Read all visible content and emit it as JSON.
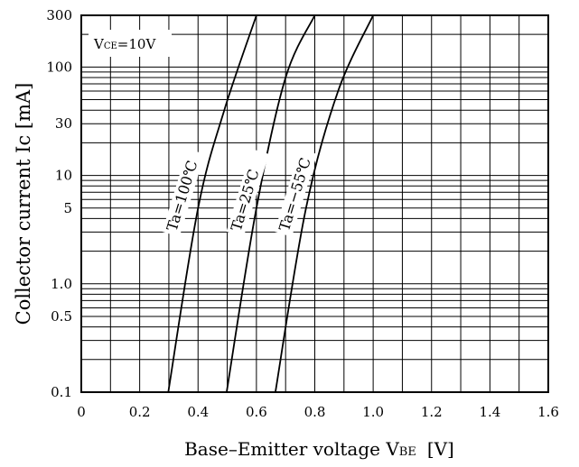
{
  "chart_data": {
    "type": "line",
    "title": "",
    "xlabel": "Base–Emitter voltage V",
    "xlabel_sub": "BE",
    "xlabel_unit": "[V]",
    "ylabel": "Collector current Ic  [mA]",
    "condition": {
      "main": "V",
      "sub": "CE",
      "value": "=10V"
    },
    "xlim": [
      0,
      1.6
    ],
    "ylim": [
      0.1,
      300
    ],
    "y_scale": "log",
    "grid": true,
    "x_ticks": [
      0,
      0.2,
      0.4,
      0.6,
      0.8,
      1.0,
      1.2,
      1.4,
      1.6
    ],
    "x_tick_labels": [
      "0",
      "0.2",
      "0.4",
      "0.6",
      "0.8",
      "1.0",
      "1.2",
      "1.4",
      "1.6"
    ],
    "x_grid_step": 0.1,
    "y_tick_labels": [
      {
        "value": 300,
        "label": "300"
      },
      {
        "value": 100,
        "label": "100"
      },
      {
        "value": 30,
        "label": "30"
      },
      {
        "value": 10,
        "label": "10"
      },
      {
        "value": 5,
        "label": "5"
      },
      {
        "value": 1.0,
        "label": "1.0"
      },
      {
        "value": 0.5,
        "label": "0.5"
      },
      {
        "value": 0.1,
        "label": "0.1"
      }
    ],
    "series": [
      {
        "name": "Ta=100℃",
        "x": [
          0.298,
          0.4,
          0.49,
          0.6
        ],
        "y": [
          0.1,
          5,
          40,
          300
        ]
      },
      {
        "name": "Ta=25℃",
        "x": [
          0.498,
          0.6,
          0.7,
          0.8
        ],
        "y": [
          0.1,
          5,
          80,
          300
        ]
      },
      {
        "name": "Ta=−55℃",
        "x": [
          0.665,
          0.77,
          0.88,
          1.0
        ],
        "y": [
          0.1,
          5,
          60,
          300
        ]
      }
    ]
  }
}
